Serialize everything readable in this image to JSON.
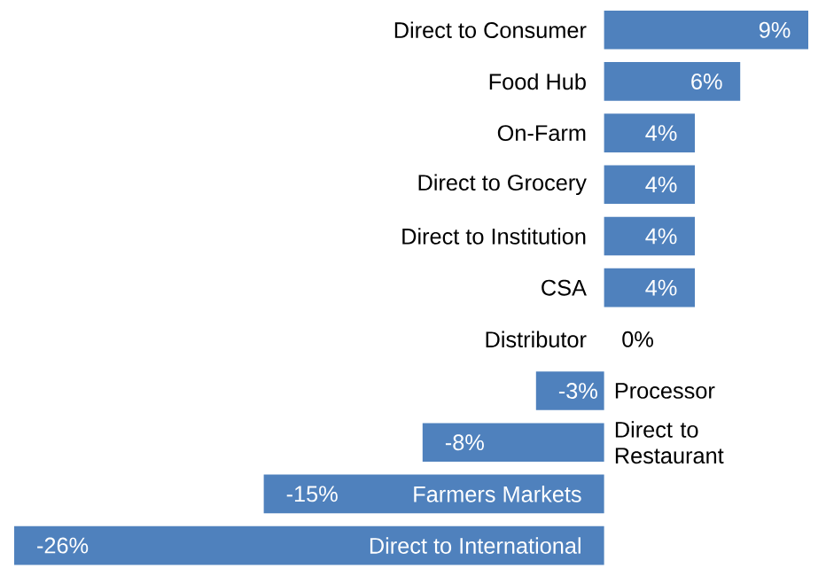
{
  "chart_data": {
    "type": "bar",
    "orientation": "horizontal",
    "categories": [
      "Direct to Consumer",
      "Food Hub",
      "On-Farm",
      "Direct to Grocery",
      "Direct to Institution",
      "CSA",
      "Distributor",
      "Processor",
      "Direct to Restaurant",
      "Farmers Markets",
      "Direct to International"
    ],
    "values": [
      9,
      6,
      4,
      4,
      4,
      4,
      0,
      -3,
      -8,
      -15,
      -26
    ],
    "value_labels": [
      "9%",
      "6%",
      "4%",
      "4%",
      "4%",
      "4%",
      "0%",
      "-3%",
      "-8%",
      "-15%",
      "-26%"
    ],
    "color": "#4f81bd"
  }
}
